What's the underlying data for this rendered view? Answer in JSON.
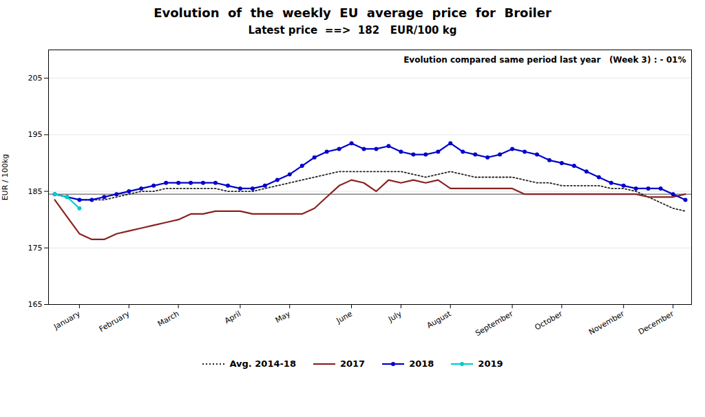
{
  "chart_data": {
    "type": "line",
    "title": "Evolution  of  the  weekly  EU  average  price  for  Broiler",
    "subtitle": "Latest price  ==>  182   EUR/100 kg",
    "annotations": [
      "Evolution compared same period last year   (Week 3) : - 01%"
    ],
    "ylabel": "EUR / 100kg",
    "xlabel": null,
    "categories": [
      null,
      null,
      "January",
      null,
      null,
      null,
      "February",
      null,
      null,
      null,
      "March",
      null,
      null,
      null,
      null,
      "April",
      null,
      null,
      null,
      "May",
      null,
      null,
      null,
      null,
      "June",
      null,
      null,
      null,
      "July",
      null,
      null,
      null,
      "August",
      null,
      null,
      null,
      null,
      "September",
      null,
      null,
      null,
      "October",
      null,
      null,
      null,
      null,
      "November",
      null,
      null,
      null,
      "December",
      null
    ],
    "ylim": [
      165,
      210
    ],
    "yticks": [
      165,
      175,
      185,
      195,
      205
    ],
    "grid": true,
    "legend": "bottom",
    "hline_y": 184.5,
    "series": [
      {
        "name": "Avg. 2014-18",
        "color": "#222222",
        "line_style": "dotted",
        "marker": "none",
        "values": [
          184.5,
          184.0,
          183.5,
          183.5,
          183.5,
          184.0,
          184.5,
          185.0,
          185.0,
          185.5,
          185.5,
          185.5,
          185.5,
          185.5,
          185.0,
          185.0,
          185.0,
          185.5,
          186.0,
          186.5,
          187.0,
          187.5,
          188.0,
          188.5,
          188.5,
          188.5,
          188.5,
          188.5,
          188.5,
          188.0,
          187.5,
          188.0,
          188.5,
          188.0,
          187.5,
          187.5,
          187.5,
          187.5,
          187.0,
          186.5,
          186.5,
          186.0,
          186.0,
          186.0,
          186.0,
          185.5,
          185.5,
          185.0,
          184.0,
          183.0,
          182.0,
          181.5
        ]
      },
      {
        "name": "2017",
        "color": "#8B2020",
        "line_style": "solid",
        "marker": "none",
        "values": [
          183.5,
          180.5,
          177.5,
          176.5,
          176.5,
          177.5,
          178.0,
          178.5,
          179.0,
          179.5,
          180.0,
          181.0,
          181.0,
          181.5,
          181.5,
          181.5,
          181.0,
          181.0,
          181.0,
          181.0,
          181.0,
          182.0,
          184.0,
          186.0,
          187.0,
          186.5,
          185.0,
          187.0,
          186.5,
          187.0,
          186.5,
          187.0,
          185.5,
          185.5,
          185.5,
          185.5,
          185.5,
          185.5,
          184.5,
          184.5,
          184.5,
          184.5,
          184.5,
          184.5,
          184.5,
          184.5,
          184.5,
          184.5,
          184.0,
          184.0,
          184.0,
          184.5
        ]
      },
      {
        "name": "2018",
        "color": "#0000CC",
        "line_style": "solid",
        "marker": "circle",
        "values": [
          184.5,
          184.0,
          183.5,
          183.5,
          184.0,
          184.5,
          185.0,
          185.5,
          186.0,
          186.5,
          186.5,
          186.5,
          186.5,
          186.5,
          186.0,
          185.5,
          185.5,
          186.0,
          187.0,
          188.0,
          189.5,
          191.0,
          192.0,
          192.5,
          193.5,
          192.5,
          192.5,
          193.0,
          192.0,
          191.5,
          191.5,
          192.0,
          193.5,
          192.0,
          191.5,
          191.0,
          191.5,
          192.5,
          192.0,
          191.5,
          190.5,
          190.0,
          189.5,
          188.5,
          187.5,
          186.5,
          186.0,
          185.5,
          185.5,
          185.5,
          184.5,
          183.5
        ]
      },
      {
        "name": "2019",
        "color": "#00CCCC",
        "line_style": "solid",
        "marker": "circle",
        "values": [
          184.5,
          184.0,
          182.0,
          null,
          null,
          null,
          null,
          null,
          null,
          null,
          null,
          null,
          null,
          null,
          null,
          null,
          null,
          null,
          null,
          null,
          null,
          null,
          null,
          null,
          null,
          null,
          null,
          null,
          null,
          null,
          null,
          null,
          null,
          null,
          null,
          null,
          null,
          null,
          null,
          null,
          null,
          null,
          null,
          null,
          null,
          null,
          null,
          null,
          null,
          null,
          null,
          null
        ]
      }
    ]
  }
}
